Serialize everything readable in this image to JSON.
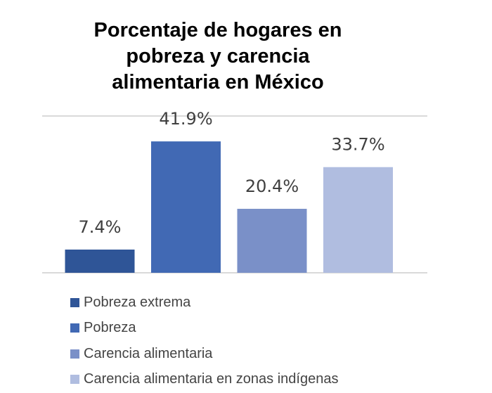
{
  "chart_data": {
    "type": "bar",
    "title_lines": [
      "Porcentaje de hogares en",
      "pobreza y  carencia",
      "alimentaria en México"
    ],
    "categories": [
      "Pobreza extrema",
      "Pobreza",
      "Carencia alimentaria",
      "Carencia alimentaria en zonas indígenas"
    ],
    "values": [
      7.4,
      41.9,
      20.4,
      33.7
    ],
    "data_labels": [
      "7.4%",
      "41.9%",
      "20.4%",
      "33.7%"
    ],
    "colors": [
      "#2f5597",
      "#4169b4",
      "#7a90c8",
      "#b0bde0"
    ],
    "ylim": [
      0,
      50
    ],
    "gridlines": [
      0,
      50
    ],
    "xlabel": "",
    "ylabel": "",
    "legend_position": "bottom"
  }
}
